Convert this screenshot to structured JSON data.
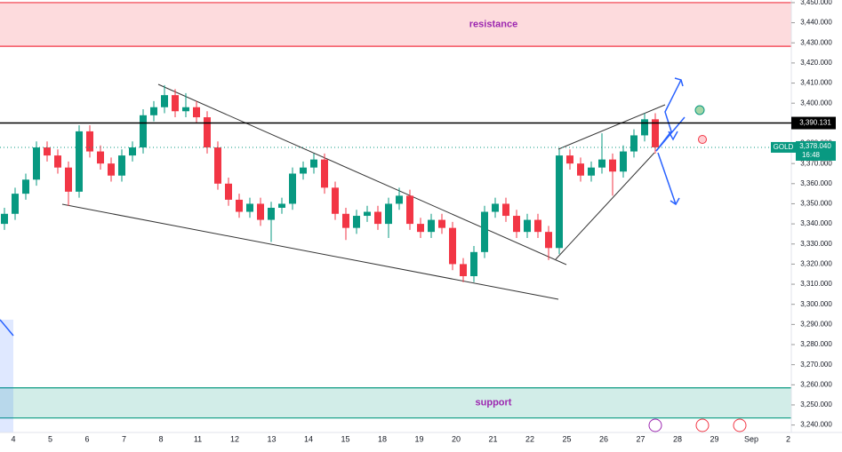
{
  "chart_data": {
    "type": "candlestick",
    "symbol": "GOLD",
    "categories": [
      "4",
      "5",
      "6",
      "7",
      "8",
      "11",
      "12",
      "13",
      "14",
      "15",
      "18",
      "19",
      "20",
      "21",
      "22",
      "25",
      "26",
      "27",
      "28",
      "29",
      "Sep",
      "2"
    ],
    "open": [
      3340,
      3345,
      3355,
      3362,
      3378,
      3374,
      3368,
      3356,
      3386,
      3376,
      3370,
      3364,
      3374,
      3378,
      3394,
      3398,
      3404,
      3396,
      3398,
      3393,
      3378,
      3360,
      3352,
      3346,
      3350,
      3342,
      3348,
      3350,
      3365,
      3368,
      3372,
      3358,
      3345,
      3338,
      3344,
      3346,
      3340,
      3350,
      3354,
      3340,
      3336,
      3342,
      3338,
      3320,
      3314,
      3326,
      3346,
      3350,
      3344,
      3336,
      3342,
      3336,
      3328,
      3374,
      3370,
      3364,
      3368,
      3372,
      3366,
      3376,
      3384,
      3392
    ],
    "high": [
      3348,
      3358,
      3365,
      3381,
      3381,
      3377,
      3371,
      3389,
      3389,
      3379,
      3373,
      3377,
      3381,
      3397,
      3401,
      3409,
      3407,
      3405,
      3401,
      3396,
      3381,
      3363,
      3355,
      3353,
      3353,
      3351,
      3353,
      3368,
      3371,
      3375,
      3375,
      3361,
      3348,
      3347,
      3349,
      3349,
      3353,
      3358,
      3357,
      3343,
      3345,
      3345,
      3341,
      3323,
      3329,
      3349,
      3353,
      3353,
      3347,
      3345,
      3345,
      3339,
      3377,
      3377,
      3373,
      3371,
      3385,
      3375,
      3379,
      3387,
      3395,
      3395
    ],
    "low": [
      3337,
      3342,
      3352,
      3359,
      3371,
      3365,
      3349,
      3353,
      3373,
      3367,
      3361,
      3361,
      3371,
      3375,
      3391,
      3395,
      3393,
      3393,
      3390,
      3375,
      3357,
      3349,
      3343,
      3343,
      3339,
      3331,
      3345,
      3347,
      3362,
      3365,
      3355,
      3342,
      3332,
      3335,
      3341,
      3337,
      3333,
      3347,
      3337,
      3333,
      3333,
      3335,
      3317,
      3311,
      3311,
      3323,
      3343,
      3341,
      3333,
      3333,
      3333,
      3322,
      3325,
      3367,
      3361,
      3361,
      3365,
      3354,
      3363,
      3373,
      3381,
      3375
    ],
    "close": [
      3345,
      3355,
      3362,
      3378,
      3374,
      3368,
      3356,
      3386,
      3376,
      3370,
      3364,
      3374,
      3378,
      3394,
      3398,
      3404,
      3396,
      3398,
      3393,
      3378,
      3360,
      3352,
      3346,
      3350,
      3342,
      3348,
      3350,
      3365,
      3368,
      3372,
      3358,
      3345,
      3338,
      3344,
      3346,
      3340,
      3350,
      3354,
      3340,
      3336,
      3342,
      3338,
      3320,
      3314,
      3326,
      3346,
      3350,
      3344,
      3336,
      3342,
      3336,
      3328,
      3374,
      3370,
      3364,
      3368,
      3372,
      3366,
      3376,
      3384,
      3392,
      3378.04
    ],
    "up_color": "#089981",
    "down_color": "#f23645",
    "ylim": [
      3236.3,
      3451.3
    ],
    "yticks": [
      {
        "value": 3240,
        "label": "3,240.000"
      },
      {
        "value": 3250,
        "label": "3,250.000"
      },
      {
        "value": 3260,
        "label": "3,260.000"
      },
      {
        "value": 3270,
        "label": "3,270.000"
      },
      {
        "value": 3280,
        "label": "3,280.000"
      },
      {
        "value": 3290,
        "label": "3,290.000"
      },
      {
        "value": 3300,
        "label": "3,300.000"
      },
      {
        "value": 3310,
        "label": "3,310.000"
      },
      {
        "value": 3320,
        "label": "3,320.000"
      },
      {
        "value": 3330,
        "label": "3,330.000"
      },
      {
        "value": 3340,
        "label": "3,340.000"
      },
      {
        "value": 3350,
        "label": "3,350.000"
      },
      {
        "value": 3360,
        "label": "3,360.000"
      },
      {
        "value": 3370,
        "label": "3,370.000"
      },
      {
        "value": 3380,
        "label": "3,380.000"
      },
      {
        "value": 3390,
        "label": "3,390.000"
      },
      {
        "value": 3400,
        "label": "3,400.000"
      },
      {
        "value": 3410,
        "label": "3,410.000"
      },
      {
        "value": 3420,
        "label": "3,420.000"
      },
      {
        "value": 3430,
        "label": "3,430.000"
      },
      {
        "value": 3440,
        "label": "3,440.000"
      },
      {
        "value": 3450,
        "label": "3,450.000"
      }
    ],
    "price_line": {
      "value": 3390.131,
      "label": "3,390.131"
    },
    "last_price": {
      "value": 3378.04,
      "label": "3,378.040"
    },
    "countdown": "16:48",
    "zones": [
      {
        "name": "resistance",
        "range": [
          3428.3,
          3450
        ],
        "color": "#f23645"
      },
      {
        "name": "support",
        "range": [
          3243.5,
          3258.5
        ],
        "color": "#089981"
      }
    ]
  }
}
